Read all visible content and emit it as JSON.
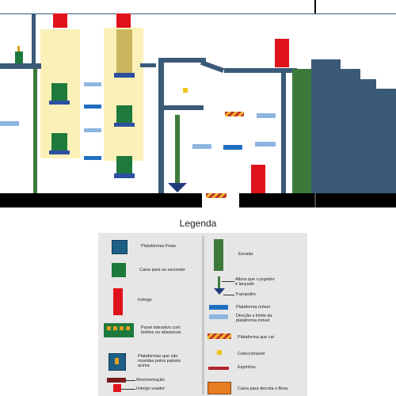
{
  "legend": {
    "title": "Legenda",
    "items": [
      {
        "id": "fixed",
        "label": "Plataformas Fixas"
      },
      {
        "id": "hide",
        "label": "Caixa para se esconder"
      },
      {
        "id": "enemy",
        "label": "Inimigo"
      },
      {
        "id": "panel",
        "label": "Panel interativo com\nbotões ou alavancas"
      },
      {
        "id": "moved",
        "label": "Plataformas que são\nmovidas pelos paineis\nacima"
      },
      {
        "id": "movement",
        "label": "Movimentação"
      },
      {
        "id": "flyer",
        "label": "Inimigo voador"
      },
      {
        "id": "ladder",
        "label": "Escada"
      },
      {
        "id": "height",
        "label": "Altura que o jogador\né lançado"
      },
      {
        "id": "spring",
        "label": "Trampolim"
      },
      {
        "id": "moving",
        "label": "Plataforma móvel"
      },
      {
        "id": "direction",
        "label": "Direção e limite da\nplataforma móvel"
      },
      {
        "id": "falling",
        "label": "Plataforma que cai"
      },
      {
        "id": "collectible",
        "label": "Coleccionavel"
      },
      {
        "id": "spikes",
        "label": "Espinhos"
      },
      {
        "id": "boss",
        "label": "Caixa para derrota o Boss"
      }
    ]
  },
  "colors": {
    "fixed": "#3a5a78",
    "hide": "#1d7a3c",
    "enemy": "#e0121b",
    "zone": "#fbf1b8",
    "moving": "#1f6fc0",
    "direction": "#8cb5df",
    "collectible": "#f0c419",
    "ladder": "#3d7a3a",
    "boss": "#e67e22"
  }
}
